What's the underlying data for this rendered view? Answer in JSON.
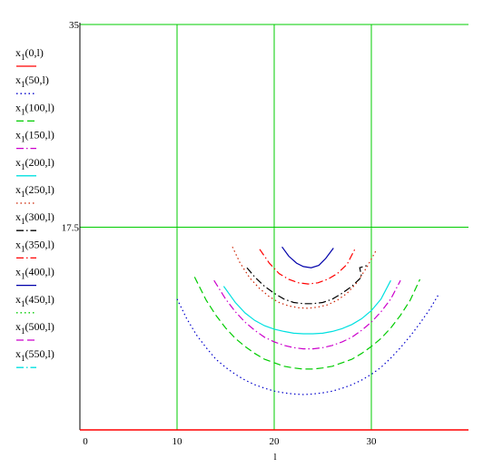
{
  "chart_data": {
    "type": "line",
    "xlabel": "l",
    "xlim": [
      0,
      40
    ],
    "ylim": [
      0,
      35
    ],
    "x_ticks": [
      0,
      10,
      20,
      30
    ],
    "y_ticks": [
      17.5,
      35
    ],
    "x_tick_labels": [
      "0",
      "10",
      "20",
      "30"
    ],
    "y_tick_labels": [
      "17.5",
      "35"
    ],
    "grid": true,
    "grid_color": "#00cc00",
    "legend_position": "left",
    "series": [
      {
        "name": "x1(0,l)",
        "color": "#ff0000",
        "dash": "solid",
        "points": [
          [
            0,
            0
          ],
          [
            40,
            0
          ]
        ]
      },
      {
        "name": "x1(50,l)",
        "color": "#0000cc",
        "dash": "dot",
        "points": [
          [
            10,
            11.3
          ],
          [
            11,
            9.6
          ],
          [
            12,
            8.2
          ],
          [
            13,
            7.1
          ],
          [
            14,
            6.1
          ],
          [
            15,
            5.4
          ],
          [
            16,
            4.8
          ],
          [
            17,
            4.3
          ],
          [
            18,
            3.9
          ],
          [
            19,
            3.6
          ],
          [
            20,
            3.35
          ],
          [
            21,
            3.2
          ],
          [
            22,
            3.1
          ],
          [
            23,
            3.05
          ],
          [
            24,
            3.1
          ],
          [
            25,
            3.2
          ],
          [
            26,
            3.35
          ],
          [
            27,
            3.6
          ],
          [
            28,
            3.9
          ],
          [
            29,
            4.3
          ],
          [
            30,
            4.8
          ],
          [
            31,
            5.4
          ],
          [
            32,
            6.2
          ],
          [
            33,
            7.1
          ],
          [
            34,
            8.1
          ],
          [
            35,
            9.2
          ],
          [
            36,
            10.4
          ],
          [
            37,
            11.8
          ]
        ]
      },
      {
        "name": "x1(100,l)",
        "color": "#00cc00",
        "dash": "dash",
        "points": [
          [
            11.8,
            13.2
          ],
          [
            13,
            11.2
          ],
          [
            14,
            9.9
          ],
          [
            15,
            8.8
          ],
          [
            16,
            7.9
          ],
          [
            17,
            7.2
          ],
          [
            18,
            6.6
          ],
          [
            19,
            6.1
          ],
          [
            20,
            5.8
          ],
          [
            21,
            5.5
          ],
          [
            22,
            5.35
          ],
          [
            23,
            5.25
          ],
          [
            24,
            5.25
          ],
          [
            25,
            5.35
          ],
          [
            26,
            5.5
          ],
          [
            27,
            5.8
          ],
          [
            28,
            6.1
          ],
          [
            29,
            6.6
          ],
          [
            30,
            7.2
          ],
          [
            31,
            7.9
          ],
          [
            32,
            8.8
          ],
          [
            33,
            9.9
          ],
          [
            34,
            11.2
          ],
          [
            35,
            13.0
          ]
        ]
      },
      {
        "name": "x1(150,l)",
        "color": "#cc00cc",
        "dash": "dashdot",
        "points": [
          [
            13.8,
            12.9
          ],
          [
            15,
            11.3
          ],
          [
            16,
            10.2
          ],
          [
            17,
            9.3
          ],
          [
            18,
            8.6
          ],
          [
            19,
            8.0
          ],
          [
            20,
            7.6
          ],
          [
            21,
            7.3
          ],
          [
            22,
            7.1
          ],
          [
            23,
            7.0
          ],
          [
            24,
            7.0
          ],
          [
            25,
            7.1
          ],
          [
            26,
            7.3
          ],
          [
            27,
            7.6
          ],
          [
            28,
            8.0
          ],
          [
            29,
            8.6
          ],
          [
            30,
            9.3
          ],
          [
            31,
            10.2
          ],
          [
            32,
            11.3
          ],
          [
            33,
            12.9
          ]
        ]
      },
      {
        "name": "x1(200,l)",
        "color": "#00e0e0",
        "dash": "solid",
        "points": [
          [
            14.8,
            12.4
          ],
          [
            16,
            11.0
          ],
          [
            17,
            10.1
          ],
          [
            18,
            9.45
          ],
          [
            19,
            9.0
          ],
          [
            20,
            8.7
          ],
          [
            21,
            8.5
          ],
          [
            22,
            8.35
          ],
          [
            23,
            8.3
          ],
          [
            24,
            8.3
          ],
          [
            25,
            8.35
          ],
          [
            26,
            8.5
          ],
          [
            27,
            8.75
          ],
          [
            28,
            9.1
          ],
          [
            29,
            9.6
          ],
          [
            30,
            10.3
          ],
          [
            31,
            11.3
          ],
          [
            32,
            12.9
          ]
        ]
      },
      {
        "name": "x1(250,l)",
        "color": "#cc2200",
        "dash": "dot",
        "points": [
          [
            15.7,
            15.8
          ],
          [
            16.5,
            14.4
          ],
          [
            17.5,
            13.1
          ],
          [
            18.5,
            12.2
          ],
          [
            19.5,
            11.5
          ],
          [
            20.5,
            11.0
          ],
          [
            21.5,
            10.7
          ],
          [
            22.5,
            10.55
          ],
          [
            23.5,
            10.5
          ],
          [
            24.5,
            10.6
          ],
          [
            25.5,
            10.8
          ],
          [
            26.5,
            11.2
          ],
          [
            27.5,
            11.8
          ],
          [
            28.5,
            12.7
          ],
          [
            29.5,
            14.0
          ],
          [
            30.5,
            15.5
          ]
        ]
      },
      {
        "name": "x1(300,l)",
        "color": "#000000",
        "dash": "dashdot",
        "points": [
          [
            17.2,
            14.0
          ],
          [
            18,
            13.2
          ],
          [
            19,
            12.4
          ],
          [
            20,
            11.8
          ],
          [
            21,
            11.3
          ],
          [
            22,
            11.0
          ],
          [
            23,
            10.9
          ],
          [
            24,
            10.9
          ],
          [
            25,
            11.0
          ],
          [
            26,
            11.3
          ],
          [
            27,
            11.8
          ],
          [
            28,
            12.4
          ],
          [
            29,
            13.2
          ],
          [
            28.8,
            14.0
          ],
          [
            29.6,
            14.2
          ]
        ]
      },
      {
        "name": "x1(350,l)",
        "color": "#ff0000",
        "dash": "dashdot",
        "points": [
          [
            18.5,
            15.6
          ],
          [
            19.5,
            14.4
          ],
          [
            20.5,
            13.5
          ],
          [
            21.5,
            13.0
          ],
          [
            22.5,
            12.7
          ],
          [
            23.5,
            12.6
          ],
          [
            24.5,
            12.7
          ],
          [
            25.5,
            13.0
          ],
          [
            26.5,
            13.5
          ],
          [
            27.5,
            14.3
          ],
          [
            28.3,
            15.6
          ]
        ]
      },
      {
        "name": "x1(400,l)",
        "color": "#0000aa",
        "dash": "solid",
        "points": [
          [
            20.8,
            15.8
          ],
          [
            21.5,
            15.0
          ],
          [
            22.3,
            14.4
          ],
          [
            23,
            14.1
          ],
          [
            23.8,
            14.0
          ],
          [
            24.6,
            14.2
          ],
          [
            25.3,
            14.8
          ],
          [
            26.1,
            15.7
          ]
        ]
      },
      {
        "name": "x1(450,l)",
        "color": "#00cc00",
        "dash": "dot",
        "points": []
      },
      {
        "name": "x1(500,l)",
        "color": "#cc00cc",
        "dash": "dash",
        "points": []
      },
      {
        "name": "x1(550,l)",
        "color": "#00e0e0",
        "dash": "dashdot",
        "points": []
      }
    ]
  }
}
